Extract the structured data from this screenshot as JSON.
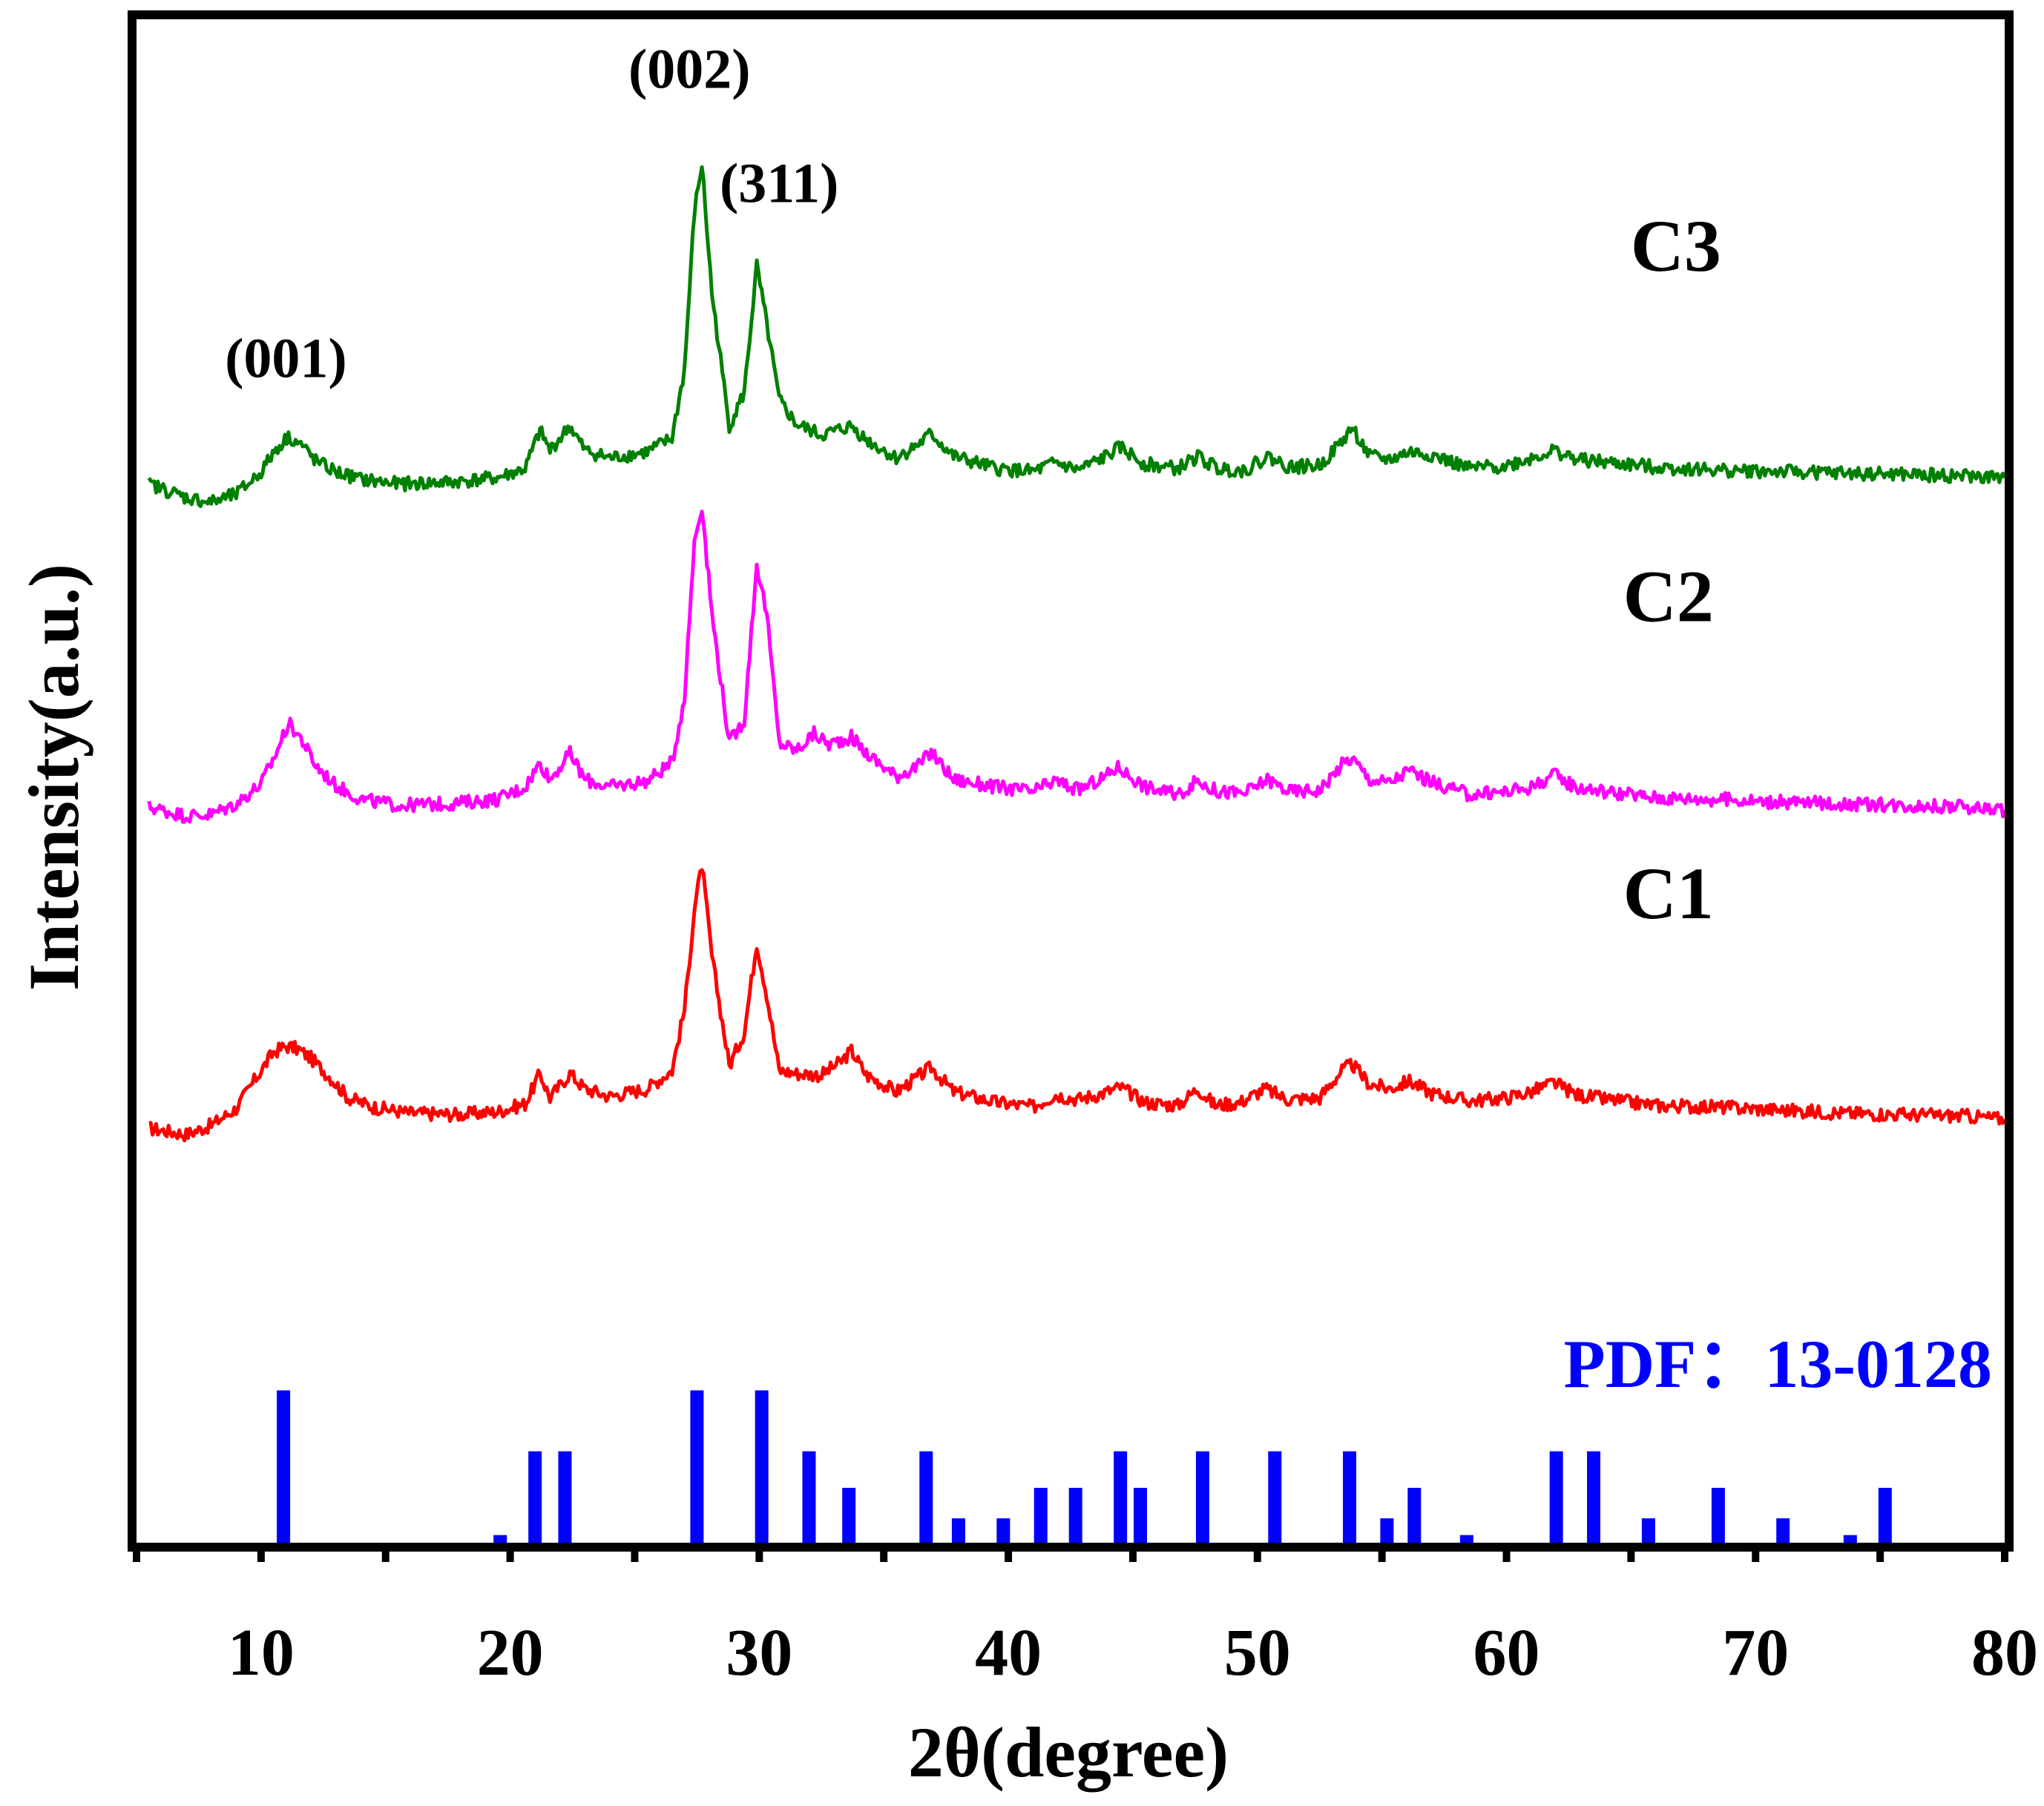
{
  "chart_data": {
    "type": "line",
    "title": "",
    "xlabel": "2θ(degree)",
    "ylabel": "Intensity(a.u.)",
    "xlim": [
      5,
      80
    ],
    "ylim": [
      0,
      100
    ],
    "y_ticks_labeled": false,
    "x_ticks": [
      10,
      20,
      30,
      40,
      50,
      60,
      70,
      80
    ],
    "x_tick_labels": [
      "10",
      "20",
      "30",
      "40",
      "50",
      "60",
      "70",
      "80"
    ],
    "grid": false,
    "legend": "none",
    "series": [
      {
        "name": "C1",
        "color": "#ff0000",
        "label_at": [
          66.5,
          41
        ],
        "x": [
          5.5,
          7,
          8,
          9,
          9.8,
          10.5,
          11,
          11.5,
          12,
          12.8,
          13.5,
          14.5,
          16,
          18,
          19.5,
          20.6,
          21.2,
          21.6,
          22.4,
          23,
          24,
          25.5,
          26.5,
          27,
          27.4,
          27.7,
          28.1,
          28.8,
          29.4,
          29.9,
          30.3,
          30.8,
          31.5,
          32.5,
          33.3,
          33.7,
          34.3,
          35.5,
          36.4,
          36.9,
          37.8,
          39.5,
          41,
          41.9,
          42.8,
          43.8,
          44.5,
          45.5,
          46.8,
          47.6,
          48.3,
          49.3,
          50.3,
          51.2,
          52.5,
          53.4,
          53.8,
          54.5,
          55.3,
          56.1,
          57,
          58.5,
          60,
          61,
          61.9,
          62.8,
          64,
          66,
          68.5,
          71,
          73.5,
          76,
          78.5,
          80
        ],
        "y": [
          27.2,
          26.8,
          27.4,
          28.5,
          30.5,
          32.2,
          32.6,
          32.4,
          31.8,
          30.5,
          29.2,
          28.6,
          28.2,
          28.1,
          28.3,
          28.8,
          30.8,
          29.2,
          30.8,
          29.8,
          29.3,
          29.8,
          31,
          35,
          41.6,
          44.5,
          38.5,
          31.3,
          33.5,
          39.4,
          36,
          31,
          30.8,
          30.7,
          31.6,
          32.3,
          30.7,
          29.6,
          30.6,
          31.2,
          29.6,
          28.9,
          28.6,
          29.4,
          29.1,
          29.5,
          29.9,
          28.9,
          28.7,
          29.8,
          28.7,
          28.9,
          29.8,
          29.1,
          29.2,
          31,
          31.4,
          30.1,
          29.8,
          30.3,
          29.5,
          29,
          29.2,
          29.6,
          30.2,
          29.4,
          29.1,
          28.7,
          28.6,
          28.4,
          28.2,
          28.1,
          28,
          27.8
        ]
      },
      {
        "name": "C2",
        "color": "#ff00ff",
        "label_at": [
          66.5,
          60.5
        ],
        "x": [
          5.5,
          7,
          8,
          9,
          10,
          10.6,
          11.1,
          11.6,
          12.2,
          13,
          14,
          15.5,
          17.5,
          19.5,
          20.6,
          21.2,
          21.6,
          22.4,
          23,
          24,
          25.5,
          26.5,
          27,
          27.4,
          27.7,
          28.1,
          28.8,
          29.4,
          29.9,
          30.3,
          30.8,
          31.5,
          32.2,
          32.8,
          33.7,
          34.3,
          35.5,
          36.4,
          36.9,
          37.8,
          39.5,
          41,
          41.9,
          42.8,
          43.8,
          44.4,
          45.5,
          46.8,
          47.6,
          48.4,
          49.5,
          50.4,
          51.3,
          52.5,
          53.4,
          53.8,
          54.5,
          55.3,
          56.1,
          57,
          58.5,
          60,
          61,
          61.9,
          62.8,
          64,
          66,
          68.5,
          71,
          73.5,
          76,
          78.5,
          80
        ],
        "y": [
          48.3,
          47.7,
          47.8,
          48.5,
          49.8,
          51.8,
          53.8,
          52.8,
          51,
          49.7,
          48.8,
          48.4,
          48.5,
          48.8,
          49.6,
          51.2,
          50.1,
          51.8,
          50.1,
          49.6,
          50,
          51.2,
          55.5,
          65.8,
          68.1,
          61,
          52.5,
          54,
          64.2,
          61,
          52.5,
          52,
          53.1,
          52.4,
          52.9,
          51.8,
          50.3,
          51,
          51.9,
          50.1,
          49.6,
          49.3,
          50,
          49.4,
          50.2,
          50.9,
          49.6,
          49.1,
          50,
          49.3,
          49.2,
          50.1,
          49.3,
          49.4,
          51.1,
          51.5,
          50.1,
          49.9,
          50.7,
          49.9,
          49.1,
          49.3,
          49.6,
          50.4,
          49.6,
          49.3,
          48.9,
          48.8,
          48.6,
          48.5,
          48.4,
          48.3,
          48.1
        ]
      },
      {
        "name": "C3",
        "color": "#008000",
        "label_at": [
          66.8,
          83.5
        ],
        "x": [
          5.5,
          7,
          8,
          9,
          10,
          10.6,
          11.1,
          11.6,
          12.2,
          13,
          14,
          15.5,
          17.5,
          19.5,
          20.6,
          21.2,
          21.6,
          22.4,
          23,
          24,
          25.5,
          26.5,
          27,
          27.4,
          27.7,
          28.1,
          28.8,
          29.4,
          29.9,
          30.3,
          30.8,
          31.5,
          32.5,
          33.7,
          34.3,
          35.5,
          36.4,
          36.9,
          37.8,
          39.5,
          41,
          41.9,
          42.8,
          43.8,
          44.5,
          45.5,
          46.8,
          47.6,
          48.4,
          49.5,
          50.4,
          51.3,
          52.5,
          53.4,
          53.8,
          54.5,
          55.3,
          56.1,
          57,
          58.5,
          60,
          61,
          61.9,
          62.8,
          64,
          66,
          68.5,
          71,
          73.5,
          76,
          78.5,
          80
        ],
        "y": [
          69.5,
          68.6,
          68.3,
          68.8,
          70.3,
          71.8,
          72.6,
          72.1,
          71,
          70.3,
          69.8,
          69.5,
          69.6,
          69.9,
          70.5,
          73,
          71.7,
          73.3,
          71.7,
          71.2,
          71.6,
          72.5,
          77,
          87.4,
          90.5,
          82,
          73.3,
          75.5,
          83.8,
          80,
          75,
          73.4,
          72.7,
          73.3,
          72.4,
          71.2,
          72.1,
          72.8,
          71.3,
          70.5,
          70.3,
          70.9,
          70.4,
          71.2,
          71.9,
          70.8,
          70.5,
          71.3,
          70.5,
          70.4,
          71.3,
          70.6,
          70.7,
          72.3,
          73.2,
          71.3,
          71.1,
          71.6,
          71.4,
          70.5,
          70.7,
          71.2,
          71.7,
          71.1,
          70.9,
          70.6,
          70.4,
          70.3,
          70.2,
          70.1,
          70,
          69.9
        ]
      }
    ],
    "reference_pattern": {
      "name": "PDF：13-0128",
      "color": "#0000ff",
      "baseline": 0,
      "positions": [
        10.9,
        19.6,
        21,
        22.2,
        27.5,
        30.1,
        32,
        33.6,
        36.7,
        38,
        39.8,
        41.3,
        42.7,
        44.5,
        45.3,
        47.8,
        50.7,
        53.7,
        55.2,
        56.3,
        58.4,
        62,
        63.5,
        65.7,
        68.5,
        71.1,
        73.8,
        75.2
      ],
      "heights": [
        10,
        0.5,
        6,
        6,
        10,
        10,
        6,
        3.6,
        6,
        1.6,
        1.6,
        3.6,
        3.6,
        6,
        3.6,
        6,
        6,
        6,
        1.6,
        3.6,
        0.5,
        6,
        6,
        1.6,
        3.6,
        1.6,
        0.5,
        3.6
      ]
    },
    "annotations": [
      {
        "text": "(001)",
        "x": 11,
        "y": 76.5
      },
      {
        "text": "(002)",
        "x": 27.2,
        "y": 95.5
      },
      {
        "text": "(311)",
        "x": 30.8,
        "y": 88
      }
    ]
  }
}
